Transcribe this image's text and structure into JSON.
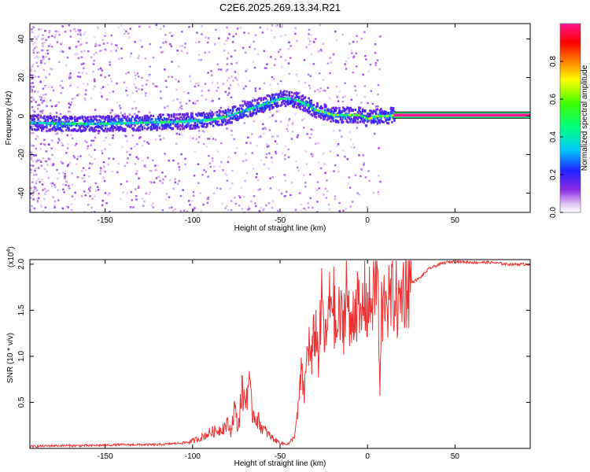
{
  "title": "C2E6.2025.269.13.34.R21",
  "chart_data": [
    {
      "type": "heatmap",
      "name": "spectrogram",
      "xlabel": "Height of straight line (km)",
      "ylabel": "Frequency (Hz)",
      "xlim": [
        -193,
        93
      ],
      "ylim": [
        -50,
        48
      ],
      "xticks": [
        -150,
        -100,
        -50,
        0,
        50
      ],
      "yticks": [
        -40,
        -20,
        0,
        20,
        40
      ],
      "colorbar": {
        "label": "Normalized spectral amplitude",
        "range": [
          0,
          1
        ],
        "ticks": [
          "0.0",
          "0.2",
          "0.4",
          "0.6",
          "0.8"
        ]
      },
      "ridge": {
        "x": [
          -193,
          -170,
          -150,
          -130,
          -110,
          -100,
          -90,
          -80,
          -70,
          -60,
          -50,
          -45,
          -40,
          -35,
          -30,
          -25,
          -20,
          -15,
          -10,
          -5,
          0,
          5,
          10,
          15,
          20,
          40,
          60,
          93
        ],
        "y": [
          -3.5,
          -4,
          -4,
          -3.5,
          -3,
          -2.5,
          -2,
          0,
          3,
          6,
          9,
          9,
          8,
          6,
          3,
          2,
          0.5,
          0.5,
          0.5,
          0.5,
          -1.5,
          0,
          0,
          0.5,
          0.5,
          0.5,
          0.5,
          0.5
        ]
      },
      "steady_band": {
        "x_start": 15,
        "x_end": 93,
        "frequency": 0.5,
        "amplitude": 1.0
      }
    },
    {
      "type": "line",
      "name": "snr",
      "xlabel": "Height of straight line (km)",
      "ylabel": "SNR (10 * v/v)",
      "scale_label": "(x10",
      "scale_exponent": "4",
      "xlim": [
        -193,
        93
      ],
      "ylim": [
        0,
        2.05
      ],
      "xticks": [
        -150,
        -100,
        -50,
        0,
        50
      ],
      "yticks": [
        "0.5",
        "1.0",
        "1.5",
        "2.0"
      ],
      "series": [
        {
          "name": "SNR",
          "color": "#ee3030",
          "x": [
            -193,
            -180,
            -160,
            -140,
            -120,
            -105,
            -100,
            -95,
            -90,
            -85,
            -80,
            -78,
            -76,
            -74,
            -72,
            -70,
            -68,
            -66,
            -64,
            -60,
            -56,
            -52,
            -48,
            -45,
            -42,
            -40,
            -38,
            -36,
            -34,
            -32,
            -30,
            -28,
            -26,
            -24,
            -22,
            -20,
            -18,
            -16,
            -14,
            -12,
            -10,
            -8,
            -6,
            -4,
            -2,
            0,
            2,
            4,
            6,
            7,
            8,
            9,
            10,
            12,
            14,
            16,
            18,
            20,
            25,
            30,
            35,
            40,
            45,
            50,
            60,
            70,
            80,
            93
          ],
          "y": [
            0.02,
            0.03,
            0.03,
            0.04,
            0.04,
            0.06,
            0.08,
            0.12,
            0.17,
            0.2,
            0.26,
            0.18,
            0.45,
            0.2,
            0.62,
            0.5,
            0.72,
            0.4,
            0.35,
            0.22,
            0.14,
            0.08,
            0.05,
            0.05,
            0.12,
            0.35,
            0.8,
            0.6,
            1.2,
            0.9,
            1.35,
            1.0,
            1.6,
            1.1,
            1.5,
            1.75,
            1.2,
            1.45,
            1.3,
            1.85,
            1.2,
            1.55,
            1.6,
            1.3,
            1.7,
            1.5,
            1.6,
            1.75,
            1.9,
            0.45,
            1.55,
            1.4,
            1.8,
            1.55,
            1.65,
            1.7,
            1.5,
            1.75,
            1.8,
            1.85,
            1.95,
            1.99,
            2.02,
            2.03,
            2.02,
            2.02,
            2.0,
            2.0
          ]
        }
      ]
    }
  ]
}
